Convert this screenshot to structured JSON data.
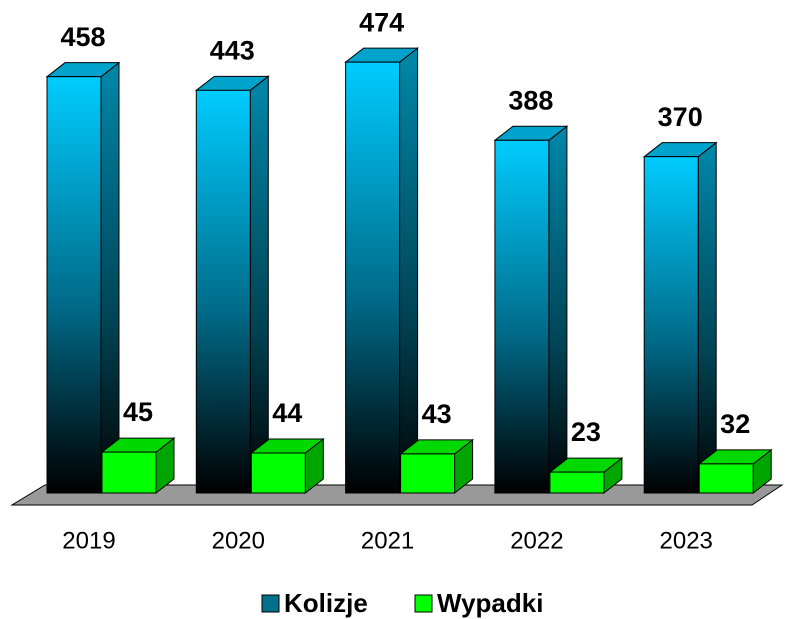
{
  "chart_data": {
    "type": "bar3d",
    "categories": [
      "2019",
      "2020",
      "2021",
      "2022",
      "2023"
    ],
    "series": [
      {
        "name": "Kolizje",
        "color": "#00ccff",
        "values": [
          458,
          443,
          474,
          388,
          370
        ]
      },
      {
        "name": "Wypadki",
        "color": "#00ff00",
        "values": [
          45,
          44,
          43,
          23,
          32
        ]
      }
    ],
    "ylim": [
      0,
      500
    ],
    "legend": "bottom"
  }
}
